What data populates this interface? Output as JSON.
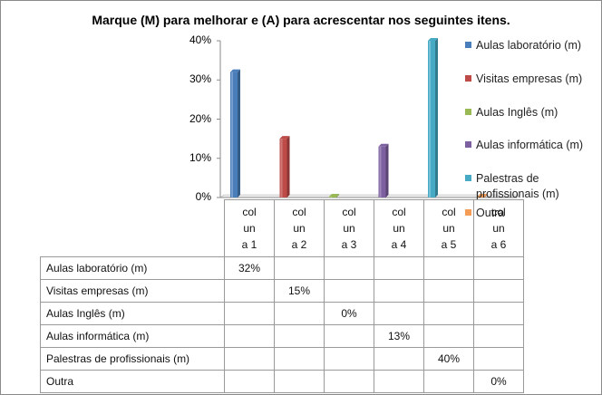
{
  "chart_data": {
    "type": "bar",
    "title": "Marque (M) para melhorar e (A) para acrescentar nos seguintes itens.",
    "categories": [
      "col un a 1",
      "col un a 2",
      "col un a 3",
      "col un a 4",
      "col un a 5",
      "col un a 6"
    ],
    "category_lines": [
      [
        "col",
        "un",
        "a 1"
      ],
      [
        "col",
        "un",
        "a 2"
      ],
      [
        "col",
        "un",
        "a 3"
      ],
      [
        "col",
        "un",
        "a 4"
      ],
      [
        "col",
        "un",
        "a 5"
      ],
      [
        "col",
        "un",
        "a 6"
      ]
    ],
    "ylim": [
      0,
      40
    ],
    "y_ticks": [
      "0%",
      "10%",
      "20%",
      "30%",
      "40%"
    ],
    "legend_position": "right",
    "series": [
      {
        "name": "Aulas laboratório (m)",
        "color": "#4a7ebb",
        "values": [
          32,
          null,
          null,
          null,
          null,
          null
        ],
        "labels": [
          "32%",
          "",
          "",
          "",
          "",
          ""
        ]
      },
      {
        "name": "Visitas empresas (m)",
        "color": "#be4b48",
        "values": [
          null,
          15,
          null,
          null,
          null,
          null
        ],
        "labels": [
          "",
          "15%",
          "",
          "",
          "",
          ""
        ]
      },
      {
        "name": "Aulas Inglês (m)",
        "color": "#98b954",
        "values": [
          null,
          null,
          0,
          null,
          null,
          null
        ],
        "labels": [
          "",
          "",
          "0%",
          "",
          "",
          ""
        ]
      },
      {
        "name": "Aulas informática (m)",
        "color": "#7d60a0",
        "values": [
          null,
          null,
          null,
          13,
          null,
          null
        ],
        "labels": [
          "",
          "",
          "",
          "13%",
          "",
          ""
        ]
      },
      {
        "name": "Palestras de profissionais (m)",
        "color": "#46aac5",
        "values": [
          null,
          null,
          null,
          null,
          40,
          null
        ],
        "labels": [
          "",
          "",
          "",
          "",
          "40%",
          ""
        ]
      },
      {
        "name": "Outra",
        "color": "#f59d56",
        "values": [
          null,
          null,
          null,
          null,
          null,
          0
        ],
        "labels": [
          "",
          "",
          "",
          "",
          "",
          "0%"
        ]
      }
    ]
  }
}
